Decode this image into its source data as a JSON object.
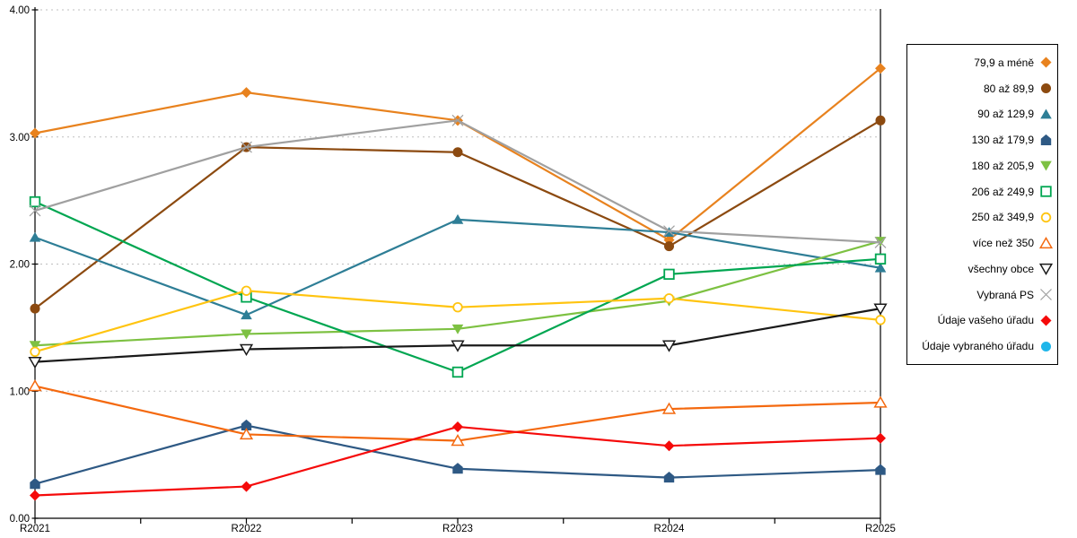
{
  "chart_data": {
    "type": "line",
    "title": "",
    "xlabel": "",
    "ylabel": "",
    "categories": [
      "R2021",
      "R2022",
      "R2023",
      "R2024",
      "R2025"
    ],
    "y_axis": {
      "min": 0,
      "max": 4,
      "tick_step": 1,
      "tick_labels": [
        "0.00",
        "1.00",
        "2.00",
        "3.00",
        "4.00"
      ],
      "gridlines": "dotted",
      "gridline_color": "#BFBFBF"
    },
    "legend_position": "right",
    "axis_color": "#000000",
    "series": [
      {
        "name": "79,9 a méně",
        "color": "#E8821E",
        "marker": "diamond",
        "values": [
          3.03,
          3.35,
          3.13,
          2.19,
          3.54
        ]
      },
      {
        "name": "80 až 89,9",
        "color": "#8C4A10",
        "marker": "circle",
        "values": [
          1.65,
          2.92,
          2.88,
          2.14,
          3.13
        ]
      },
      {
        "name": "90 až 129,9",
        "color": "#2E7E96",
        "marker": "triangle-up",
        "values": [
          2.21,
          1.6,
          2.35,
          2.25,
          1.97
        ]
      },
      {
        "name": "130 až 179,9",
        "color": "#2E5984",
        "marker": "pentagon",
        "values": [
          0.27,
          0.73,
          0.39,
          0.32,
          0.38
        ]
      },
      {
        "name": "180 až 205,9",
        "color": "#7DC142",
        "marker": "triangle-down",
        "values": [
          1.36,
          1.45,
          1.49,
          1.71,
          2.18
        ]
      },
      {
        "name": "206 až 249,9",
        "color": "#00A651",
        "marker": "square-open",
        "values": [
          2.49,
          1.74,
          1.15,
          1.92,
          2.04
        ]
      },
      {
        "name": "250 až 349,9",
        "color": "#FFC410",
        "marker": "circle-open",
        "values": [
          1.31,
          1.79,
          1.66,
          1.73,
          1.56
        ]
      },
      {
        "name": "více než 350",
        "color": "#F4690F",
        "marker": "triangle-up-open",
        "values": [
          1.04,
          0.66,
          0.61,
          0.86,
          0.91
        ]
      },
      {
        "name": "všechny obce",
        "color": "#1A1A1A",
        "marker": "triangle-down-open",
        "values": [
          1.23,
          1.33,
          1.36,
          1.36,
          1.65
        ]
      },
      {
        "name": "Vybraná PS",
        "color": "#A0A0A0",
        "marker": "x",
        "values": [
          2.42,
          2.92,
          3.13,
          2.26,
          2.17
        ]
      },
      {
        "name": "Údaje vašeho úřadu",
        "color": "#F50A0A",
        "marker": "diamond",
        "values": [
          0.18,
          0.25,
          0.72,
          0.57,
          0.63
        ]
      },
      {
        "name": "Údaje vybraného úřadu",
        "color": "#1FB6EA",
        "marker": "circle",
        "values": []
      }
    ]
  }
}
